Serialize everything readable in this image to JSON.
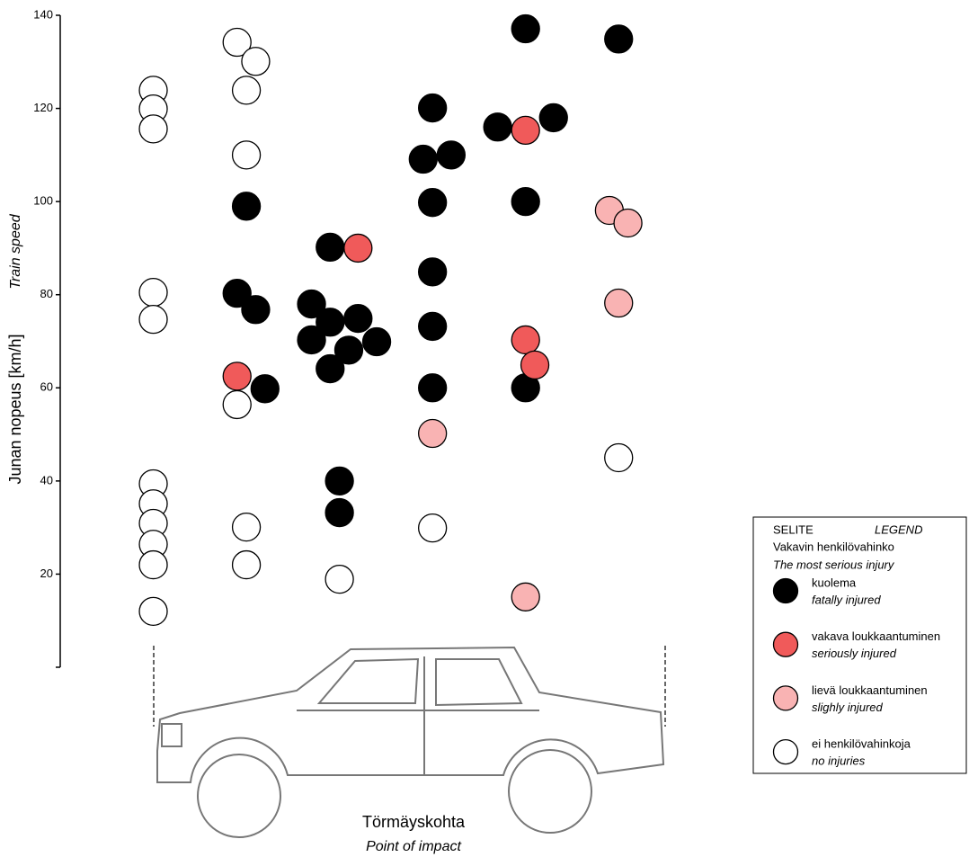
{
  "chart_data": {
    "type": "scatter",
    "y_label": "Junan nopeus [km/h]",
    "y_label_en": "Train speed",
    "x_label": "Törmäyskohta",
    "x_label_en": "Point of impact",
    "legend_title": "SELITE",
    "legend_title_en": "LEGEND",
    "legend_subtitle": "Vakavin henkilövahinko",
    "legend_subtitle_en": "The most serious injury",
    "xlim": [
      0,
      6.5
    ],
    "ylim": [
      0,
      140
    ],
    "yticks": [
      20,
      40,
      60,
      80,
      100,
      120,
      140
    ],
    "series": [
      {
        "name": "kuolema",
        "name_en": "fatally injured",
        "color": "#000000",
        "x": [
          2.0,
          1.9,
          2.1,
          2.2,
          2.9,
          2.7,
          2.9,
          3.2,
          2.7,
          3.1,
          3.4,
          2.9,
          3.0,
          3.0,
          4.0,
          3.9,
          4.2,
          4.0,
          4.0,
          4.0,
          4.0,
          5.0,
          4.7,
          5.3,
          5.0,
          5.0,
          6.0
        ],
        "values": [
          99.0,
          80.3,
          76.8,
          59.8,
          90.2,
          78.0,
          74.1,
          74.9,
          70.3,
          68.1,
          69.9,
          64.1,
          40.0,
          33.2,
          120.1,
          109.1,
          110.0,
          99.8,
          84.9,
          73.2,
          60.0,
          137.1,
          116.0,
          118.0,
          100.0,
          60.0,
          134.9
        ]
      },
      {
        "name": "vakava loukkaantuminen",
        "name_en": "seriously injured",
        "color": "#f05a5a",
        "x": [
          1.9,
          3.2,
          5.0,
          5.0,
          5.1
        ],
        "values": [
          62.5,
          90.0,
          115.3,
          70.3,
          64.9
        ]
      },
      {
        "name": "lievä loukkaantuminen",
        "name_en": "slighly injured",
        "color": "#f9b3b3",
        "x": [
          4.0,
          5.0,
          5.9,
          6.1,
          6.0
        ],
        "values": [
          50.2,
          15.1,
          98.1,
          95.4,
          78.2
        ]
      },
      {
        "name": "ei henkilövahinkoja",
        "name_en": "no injuries",
        "color": "#ffffff",
        "x": [
          1.0,
          1.0,
          1.0,
          1.0,
          1.0,
          1.0,
          1.0,
          1.0,
          1.0,
          1.0,
          1.0,
          1.9,
          2.1,
          2.0,
          2.0,
          1.9,
          2.0,
          2.0,
          3.0,
          4.0,
          6.0
        ],
        "values": [
          123.9,
          119.9,
          115.6,
          80.5,
          74.7,
          39.4,
          35.1,
          30.9,
          26.4,
          22.0,
          12.0,
          134.2,
          130.1,
          123.9,
          110.0,
          56.4,
          30.1,
          22.0,
          18.9,
          29.9,
          45.0
        ]
      }
    ]
  }
}
